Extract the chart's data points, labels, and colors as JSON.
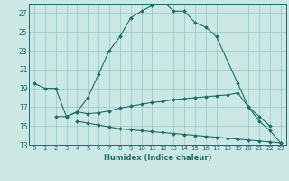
{
  "xlabel": "Humidex (Indice chaleur)",
  "xlim": [
    -0.5,
    23.5
  ],
  "ylim": [
    13,
    28
  ],
  "yticks": [
    13,
    15,
    17,
    19,
    21,
    23,
    25,
    27
  ],
  "xticks": [
    0,
    1,
    2,
    3,
    4,
    5,
    6,
    7,
    8,
    9,
    10,
    11,
    12,
    13,
    14,
    15,
    16,
    17,
    18,
    19,
    20,
    21,
    22,
    23
  ],
  "bg_color": "#cce8e4",
  "grid_color": "#99cccc",
  "line_color": "#1a6b6b",
  "line1": [
    19.5,
    19.0,
    19.0,
    16.0,
    16.5,
    18.0,
    20.5,
    23.0,
    24.5,
    26.5,
    27.2,
    27.8,
    28.3,
    27.2,
    27.2,
    26.0,
    25.5,
    24.5,
    19.5,
    17.0,
    15.5,
    14.5,
    13.2
  ],
  "line1_x": [
    0,
    1,
    2,
    3,
    4,
    5,
    6,
    7,
    8,
    9,
    10,
    11,
    12,
    13,
    14,
    15,
    16,
    17,
    19,
    20,
    21,
    22,
    23
  ],
  "line2": [
    16.0,
    16.0,
    16.5,
    16.3,
    16.4,
    16.6,
    16.9,
    17.1,
    17.3,
    17.5,
    17.6,
    17.8,
    17.9,
    18.0,
    18.1,
    18.2,
    18.3,
    18.5,
    17.0,
    16.0,
    15.0
  ],
  "line2_x": [
    2,
    3,
    4,
    5,
    6,
    7,
    8,
    9,
    10,
    11,
    12,
    13,
    14,
    15,
    16,
    17,
    18,
    19,
    20,
    21,
    22
  ],
  "line3": [
    15.5,
    15.3,
    15.1,
    14.9,
    14.7,
    14.6,
    14.5,
    14.4,
    14.3,
    14.2,
    14.1,
    14.0,
    13.9,
    13.8,
    13.7,
    13.6,
    13.5,
    13.4,
    13.3,
    13.2
  ],
  "line3_x": [
    4,
    5,
    6,
    7,
    8,
    9,
    10,
    11,
    12,
    13,
    14,
    15,
    16,
    17,
    18,
    19,
    20,
    21,
    22,
    23
  ]
}
